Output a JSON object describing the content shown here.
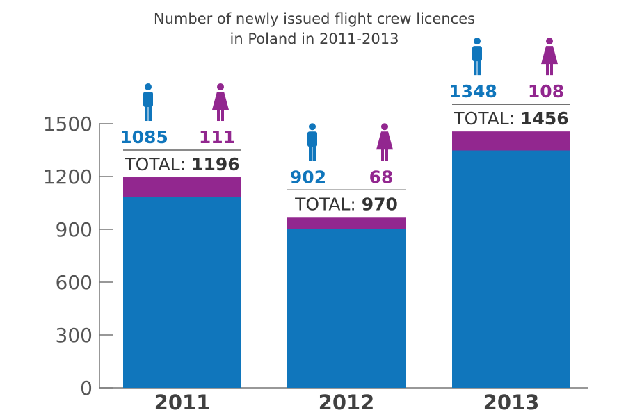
{
  "chart_data": {
    "type": "bar",
    "stacked": true,
    "title": "Number of newly issued flight crew licences in Poland in 2011-2013",
    "title_lines": [
      "Number of newly issued flight crew licences",
      "in Poland in 2011-2013"
    ],
    "categories": [
      "2011",
      "2012",
      "2013"
    ],
    "series": [
      {
        "values": [
          1085,
          902,
          1348
        ],
        "icon": "man-icon",
        "color": "#1076bc"
      },
      {
        "values": [
          111,
          68,
          108
        ],
        "icon": "woman-icon",
        "color": "#92278f"
      }
    ],
    "totals": [
      1196,
      970,
      1456
    ],
    "total_label": "TOTAL:",
    "ylim": [
      0,
      1500
    ],
    "yticks": [
      0,
      300,
      600,
      900,
      1200,
      1500
    ],
    "grid": false,
    "xlabel": "",
    "ylabel": ""
  }
}
